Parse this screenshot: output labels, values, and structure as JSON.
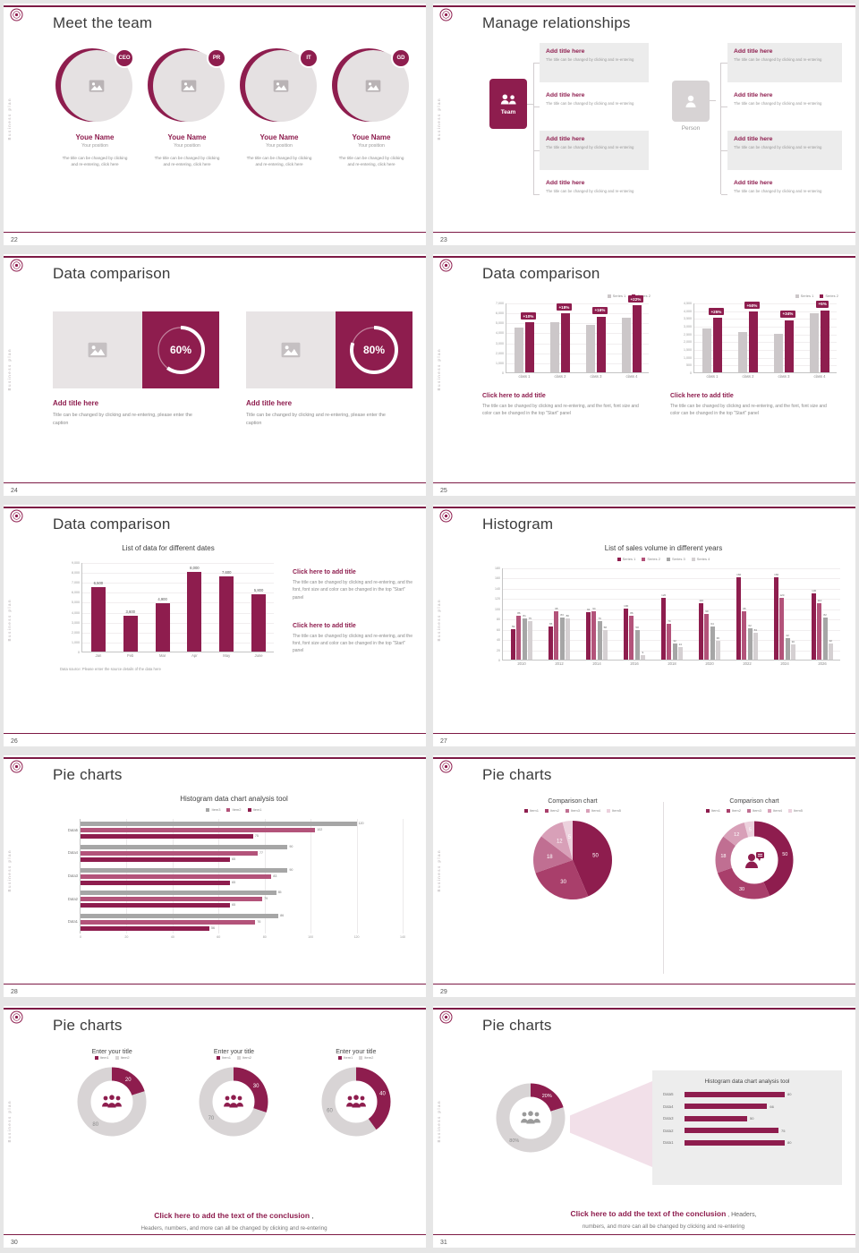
{
  "theme": {
    "accent": "#8e1d4e",
    "accent_dark": "#7d1a45",
    "light_gray": "#e5e1e2",
    "text_dark": "#3b3b3b",
    "text_gray": "#8a8a8a"
  },
  "vertical_text": "Business plan",
  "icons": {
    "school-logo": "circular-seal",
    "image-placeholder-icon": "picture",
    "team-icon": "two-people",
    "person-icon": "person",
    "people-group-icon": "three-people",
    "person-speech-icon": "person-with-speech-bubble"
  },
  "slides": {
    "s22": {
      "title": "Meet the team",
      "page": "22",
      "members": [
        {
          "badge": "CEO",
          "name": "Youe Name",
          "position": "Your position",
          "desc": "The title can be changed by clicking and re-entering, click here"
        },
        {
          "badge": "PR",
          "name": "Youe Name",
          "position": "Your position",
          "desc": "The title can be changed by clicking and re-entering, click here"
        },
        {
          "badge": "IT",
          "name": "Youe Name",
          "position": "Your position",
          "desc": "The title can be changed by clicking and re-entering, click here"
        },
        {
          "badge": "GD",
          "name": "Youe Name",
          "position": "Your position",
          "desc": "The title can be changed by clicking and re-entering, click here"
        }
      ]
    },
    "s23": {
      "title": "Manage relationships",
      "page": "23",
      "team_label": "Team",
      "person_label": "Person",
      "item_title": "Add title here",
      "item_desc": "The title can be changed by clicking and re-entering"
    },
    "s24": {
      "title": "Data comparison",
      "page": "24",
      "percent_sign": "%",
      "blocks": [
        {
          "percent": 60,
          "title": "Add title here",
          "desc": "Title can be changed by clicking and re-entering, please enter the caption"
        },
        {
          "percent": 80,
          "title": "Add title here",
          "desc": "Title can be changed by clicking and re-entering, please enter the caption"
        }
      ]
    },
    "s25": {
      "title": "Data comparison",
      "page": "25",
      "charts": [
        {
          "type": "bar",
          "legend": [
            "Series 1",
            "Series 2"
          ],
          "series_colors": [
            "#ccc7c9",
            "#8e1d4e"
          ],
          "categories": [
            "class 1",
            "class 2",
            "class 3",
            "class 4"
          ],
          "series1": [
            4500,
            5000,
            4800,
            5500
          ],
          "series2": [
            5000,
            5900,
            5600,
            6700
          ],
          "flags": [
            "+10%",
            "+18%",
            "+16%",
            "+22%"
          ],
          "ymax": 7000,
          "yticks": [
            "0",
            "1,000",
            "2,000",
            "3,000",
            "4,000",
            "5,000",
            "6,000",
            "7,000"
          ],
          "caption_title": "Click here to add title",
          "caption": "The title can be changed by clicking and re-entering, and the font, font size and color can be changed in the top \"Start\" panel"
        },
        {
          "type": "bar",
          "legend": [
            "Series 1",
            "Series 2"
          ],
          "series_colors": [
            "#ccc7c9",
            "#8e1d4e"
          ],
          "categories": [
            "class 1",
            "class 2",
            "class 3",
            "class 4"
          ],
          "series1": [
            2800,
            2600,
            2500,
            3800
          ],
          "series2": [
            3500,
            3900,
            3350,
            4000
          ],
          "flags": [
            "+25%",
            "+50%",
            "+34%",
            "+5%"
          ],
          "ymax": 4500,
          "yticks": [
            "0",
            "500",
            "1,000",
            "1,500",
            "2,000",
            "2,500",
            "3,000",
            "3,500",
            "4,000",
            "4,500"
          ],
          "caption_title": "Click here to add title",
          "caption": "The title can be changed by clicking and re-entering, and the font, font size and color can be changed in the top \"Start\" panel"
        }
      ]
    },
    "s26": {
      "title": "Data comparison",
      "page": "26",
      "chart_title": "List of data for different dates",
      "type": "bar",
      "categories": [
        "Jan",
        "Feb",
        "Mar",
        "Apr",
        "May",
        "June"
      ],
      "values": [
        6500,
        3600,
        4900,
        8000,
        7600,
        5800
      ],
      "labels": [
        "6,500",
        "3,600",
        "4,900",
        "8,000",
        "7,600",
        "5,800"
      ],
      "ymax": 9000,
      "yticks": [
        "0",
        "1,000",
        "2,000",
        "3,000",
        "4,000",
        "5,000",
        "6,000",
        "7,000",
        "8,000",
        "9,000"
      ],
      "datasource": "Data source: Please enter the source details of the data here",
      "captions": [
        {
          "title": "Click here to add title",
          "text": "The title can be changed by clicking and re-entering, and the font, font size and color can be changed in the top \"Start\" panel"
        },
        {
          "title": "Click here to add title",
          "text": "The title can be changed by clicking and re-entering, and the font, font size and color can be changed in the top \"Start\" panel"
        }
      ]
    },
    "s27": {
      "title": "Histogram",
      "page": "27",
      "chart_title": "List of sales volume in different years",
      "type": "bar",
      "legend": [
        "Series 1",
        "Series 2",
        "Series 3",
        "Series 4"
      ],
      "series_colors": [
        "#8e1d4e",
        "#b3537a",
        "#a6a6a6",
        "#d5d0d2"
      ],
      "years": [
        "2010",
        "2012",
        "2014",
        "2016",
        "2018",
        "2020",
        "2022",
        "2024",
        "2026"
      ],
      "values": [
        [
          59,
          86,
          81,
          75
        ],
        [
          65,
          95,
          83,
          80
        ],
        [
          92,
          94,
          76,
          58
        ],
        [
          100,
          86,
          58,
          9
        ],
        [
          120,
          70,
          32,
          24
        ],
        [
          110,
          90,
          64,
          36
        ],
        [
          160,
          95,
          62,
          53
        ],
        [
          160,
          120,
          42,
          30
        ],
        [
          130,
          110,
          82,
          32
        ]
      ],
      "ymax": 180,
      "yticks": [
        "0",
        "20",
        "40",
        "60",
        "80",
        "100",
        "120",
        "140",
        "160",
        "180"
      ]
    },
    "s28": {
      "title": "Pie charts",
      "page": "28",
      "chart_title": "Histogram data chart analysis tool",
      "type": "bar-horizontal",
      "legend": [
        "Item3",
        "Item2",
        "Item1"
      ],
      "colors": [
        "#a6a6a6",
        "#b3537a",
        "#8e1d4e"
      ],
      "groups": [
        {
          "label": "Data5",
          "values": [
            120,
            102,
            75
          ]
        },
        {
          "label": "Data4",
          "values": [
            90,
            77,
            65
          ]
        },
        {
          "label": "Data3",
          "values": [
            90,
            83,
            65
          ]
        },
        {
          "label": "Data2",
          "values": [
            85,
            79,
            65
          ]
        },
        {
          "label": "Data1",
          "values": [
            86,
            76,
            56
          ]
        }
      ],
      "xmax": 140,
      "xticks": [
        "0",
        "20",
        "40",
        "60",
        "80",
        "100",
        "120",
        "140"
      ]
    },
    "s29": {
      "title": "Pie charts",
      "page": "29",
      "colors": [
        "#8e1d4e",
        "#a93f6b",
        "#c06f92",
        "#d8a0b8",
        "#ecd1dd"
      ],
      "charts": [
        {
          "type": "pie",
          "title": "Comparison chart",
          "legend": [
            "Item1",
            "Item2",
            "Item3",
            "Item4",
            "Item5"
          ],
          "values": [
            50,
            30,
            18,
            12,
            5
          ]
        },
        {
          "type": "donut",
          "title": "Comparison chart",
          "legend": [
            "Item1",
            "Item2",
            "Item3",
            "Item4",
            "Item5"
          ],
          "values": [
            50,
            30,
            18,
            12,
            5
          ]
        }
      ]
    },
    "s30": {
      "title": "Pie charts",
      "page": "30",
      "colors": [
        "#8e1d4e",
        "#d8d4d5"
      ],
      "charts": [
        {
          "type": "donut",
          "title": "Enter your title",
          "legend": [
            "Item1",
            "Item2"
          ],
          "values": [
            20,
            80
          ]
        },
        {
          "type": "donut",
          "title": "Enter your title",
          "legend": [
            "Item1",
            "Item2"
          ],
          "values": [
            30,
            70
          ]
        },
        {
          "type": "donut",
          "title": "Enter your title",
          "legend": [
            "Item1",
            "Item2"
          ],
          "values": [
            40,
            60
          ]
        }
      ],
      "conclusion_bold": "Click here to add the text of the conclusion",
      "conclusion_comma": " ,",
      "conclusion_text": "Headers, numbers, and more can all be changed by clicking and re-entering"
    },
    "s31": {
      "title": "Pie charts",
      "page": "31",
      "donut": {
        "type": "donut",
        "values": [
          20,
          80
        ],
        "labels": [
          "20%",
          "80%"
        ]
      },
      "panel_title": "Histogram data chart analysis tool",
      "type": "bar-horizontal",
      "bars": [
        {
          "label": "Data5",
          "value": 80
        },
        {
          "label": "Data4",
          "value": 66
        },
        {
          "label": "Data3",
          "value": 50
        },
        {
          "label": "Data2",
          "value": 75
        },
        {
          "label": "Data1",
          "value": 80
        }
      ],
      "xmax": 100,
      "conclusion_bold": "Click here to add the text of the conclusion",
      "conclusion_mid": " , Headers,",
      "conclusion_text": "numbers, and more can all be changed by clicking and re-entering"
    }
  }
}
